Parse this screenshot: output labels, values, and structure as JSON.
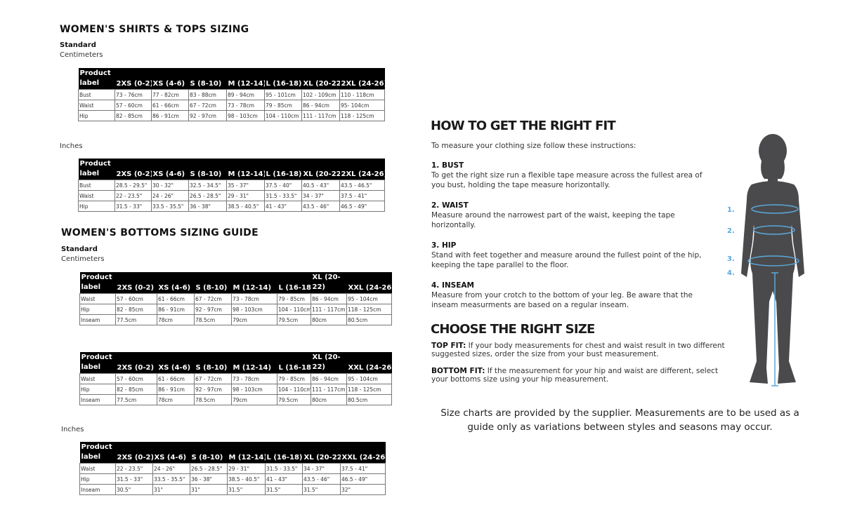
{
  "tops": {
    "title": "WOMEN'S SHIRTS & TOPS SIZING",
    "standard": "Standard",
    "cm_label": "Centimeters",
    "in_label": "Inches",
    "headers": [
      "Product label",
      "2XS (0-2)",
      "XS (4-6)",
      "S (8-10)",
      "M (12-14)",
      "L (16-18)",
      "XL (20-22)",
      "2XL (24-26)"
    ],
    "cm_rows": [
      [
        "Bust",
        "73 - 76cm",
        "77 - 82cm",
        "83 - 88cm",
        "89 - 94cm",
        "95 - 101cm",
        "102 - 109cm",
        "110 - 118cm"
      ],
      [
        "Waist",
        "57 - 60cm",
        "61 - 66cm",
        "67 - 72cm",
        "73 - 78cm",
        "79 - 85cm",
        "86 - 94cm",
        "95- 104cm"
      ],
      [
        "Hip",
        "82 - 85cm",
        "86 - 91cm",
        "92 - 97cm",
        "98 - 103cm",
        "104 - 110cm",
        "111 - 117cm",
        "118 - 125cm"
      ]
    ],
    "in_rows": [
      [
        "Bust",
        "28.5 - 29.5\"",
        "30 - 32\"",
        "32.5 - 34.5\"",
        "35 - 37\"",
        "37.5 - 40\"",
        "40.5 - 43\"",
        "43.5 - 46.5\""
      ],
      [
        "Waist",
        "22 - 23.5\"",
        "24 - 26\"",
        "26.5 - 28.5\"",
        "29 - 31\"",
        "31.5 - 33.5\"",
        "34 - 37\"",
        "37.5 - 41\""
      ],
      [
        "Hip",
        "31.5 - 33\"",
        "33.5 - 35.5\"",
        "36 - 38\"",
        "38.5 - 40.5\"",
        "41 - 43\"",
        "43.5 - 46\"",
        "46.5 - 49\""
      ]
    ]
  },
  "bottoms": {
    "title": "WOMEN'S BOTTOMS SIZING GUIDE",
    "standard": "Standard",
    "cm_label": "Centimeters",
    "in_label": "Inches",
    "headers": [
      "Product label",
      "2XS (0-2)",
      "XS (4-6)",
      "S (8-10)",
      "M (12-14)",
      "L (16-18)",
      "XL (20-22)",
      "XXL (24-26)"
    ],
    "cm_rows": [
      [
        "Waist",
        "57 - 60cm",
        "61 - 66cm",
        "67 - 72cm",
        "73 - 78cm",
        "79 - 85cm",
        "86 - 94cm",
        "95 - 104cm"
      ],
      [
        "Hip",
        "82 - 85cm",
        "86 - 91cm",
        "92 - 97cm",
        "98 - 103cm",
        "104 - 110cm",
        "111 - 117cm",
        "118 - 125cm"
      ],
      [
        "Inseam",
        "77.5cm",
        "78cm",
        "78.5cm",
        "79cm",
        "79.5cm",
        "80cm",
        "80.5cm"
      ]
    ],
    "in_rows": [
      [
        "Waist",
        "22 - 23.5\"",
        "24 - 26\"",
        "26.5 - 28.5\"",
        "29 - 31\"",
        "31.5 - 33.5\"",
        "34 - 37\"",
        "37.5 - 41\""
      ],
      [
        "Hip",
        "31.5 - 33\"",
        "33.5 - 35.5\"",
        "36 - 38\"",
        "38.5 - 40.5\"",
        "41 - 43\"",
        "43.5 - 46\"",
        "46.5 - 49\""
      ],
      [
        "Inseam",
        "30.5\"",
        "31\"",
        "31\"",
        "31.5\"",
        "31.5\"",
        "31.5\"",
        "32\""
      ]
    ]
  },
  "fit": {
    "title": "HOW TO GET THE RIGHT FIT",
    "intro": "To measure your clothing size follow these instructions:",
    "steps": [
      {
        "heading": "1. BUST",
        "text": "To get the right size run a flexible tape measure across the fullest area of you bust, holding the tape measure horizontally."
      },
      {
        "heading": "2. WAIST",
        "text": "Measure around the narrowest part of the waist, keeping the tape horizontally."
      },
      {
        "heading": "3. HIP",
        "text": "Stand with feet together and measure around the fullest point of the hip, keeping the tape parallel to the floor."
      },
      {
        "heading": "4. INSEAM",
        "text": "Measure from your crotch to the bottom of your leg. Be aware that the inseam measurments are based on a regular inseam."
      }
    ]
  },
  "choose": {
    "title": "CHOOSE THE RIGHT SIZE",
    "top_label": "TOP FIT:",
    "top_text": " If your body measurements for chest and waist result in two different suggested sizes, order the size from your bust measurement.",
    "bottom_label": "BOTTOM FIT:",
    "bottom_text": " If the measurement for your hip and waist are different, select your bottoms size using your hip measurement."
  },
  "figure": {
    "labels": [
      "1.",
      "2.",
      "3.",
      "4."
    ],
    "accent": "#5aa9dc",
    "silhouette": "#4a4a4c"
  },
  "note": "Size charts are provided by the supplier. Measurements are to be used as a guide only as variations between styles and seasons may occur."
}
